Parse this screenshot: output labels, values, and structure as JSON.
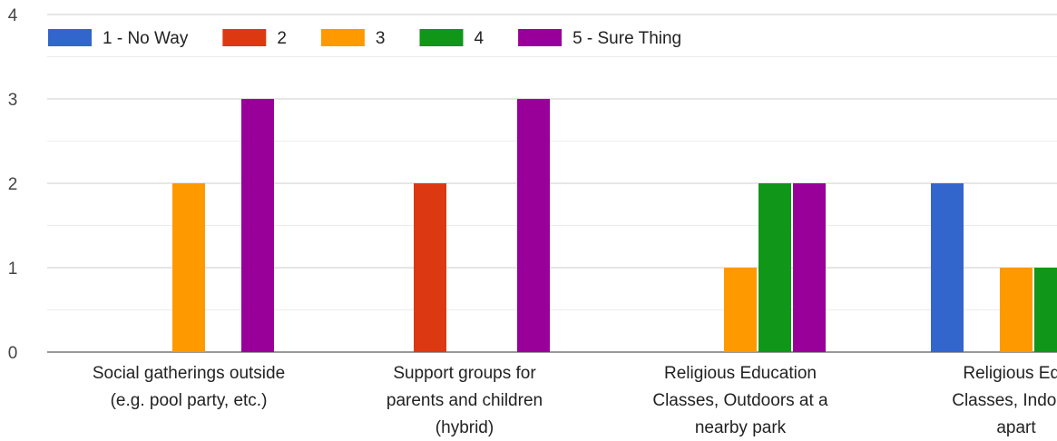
{
  "chart_data": {
    "type": "bar",
    "title": "",
    "xlabel": "",
    "ylabel": "",
    "ylim": [
      0,
      4
    ],
    "y_ticks": [
      0,
      1,
      2,
      3,
      4
    ],
    "grid": true,
    "legend_position": "top",
    "categories": [
      [
        "Social gatherings outside",
        "(e.g. pool party, etc.)"
      ],
      [
        "Support groups for",
        "parents and children",
        "(hybrid)"
      ],
      [
        "Religious Education",
        "Classes, Outdoors at a",
        "nearby park"
      ],
      [
        "Religious Edu",
        "Classes, Indoors",
        "apart"
      ]
    ],
    "series": [
      {
        "name": "1 - No Way",
        "color": "#3366cc",
        "values": [
          0,
          0,
          0,
          2
        ]
      },
      {
        "name": "2",
        "color": "#dc3912",
        "values": [
          0,
          2,
          0,
          0
        ]
      },
      {
        "name": "3",
        "color": "#ff9900",
        "values": [
          2,
          0,
          1,
          1
        ]
      },
      {
        "name": "4",
        "color": "#109618",
        "values": [
          0,
          0,
          2,
          1
        ]
      },
      {
        "name": "5 - Sure Thing",
        "color": "#990099",
        "values": [
          3,
          3,
          2,
          0
        ]
      }
    ]
  }
}
